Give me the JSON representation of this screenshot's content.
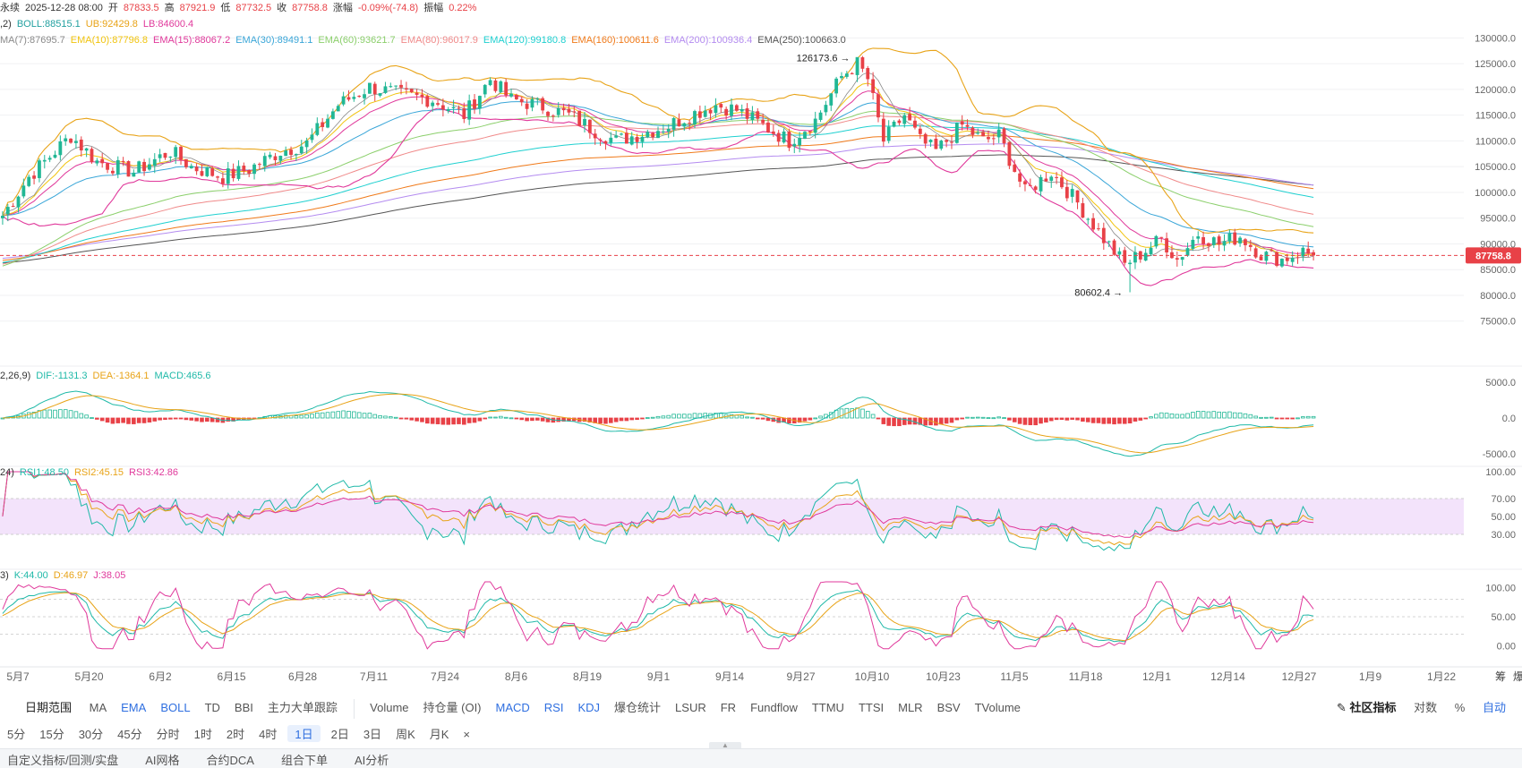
{
  "header": {
    "row1": [
      {
        "text": "永续",
        "color": "#333333"
      },
      {
        "text": "2025-12-28 08:00",
        "color": "#333333"
      },
      {
        "text": "开",
        "color": "#333333"
      },
      {
        "text": "87833.5",
        "color": "#e84147"
      },
      {
        "text": "高",
        "color": "#333333"
      },
      {
        "text": "87921.9",
        "color": "#e84147"
      },
      {
        "text": "低",
        "color": "#333333"
      },
      {
        "text": "87732.5",
        "color": "#e84147"
      },
      {
        "text": "收",
        "color": "#333333"
      },
      {
        "text": "87758.8",
        "color": "#e84147"
      },
      {
        "text": "涨幅",
        "color": "#333333"
      },
      {
        "text": "-0.09%(-74.8)",
        "color": "#e84147"
      },
      {
        "text": "振幅",
        "color": "#333333"
      },
      {
        "text": "0.22%",
        "color": "#e84147"
      }
    ],
    "row2": [
      {
        "text": ",2)",
        "color": "#333333"
      },
      {
        "text": "BOLL:88515.1",
        "color": "#22a0a0"
      },
      {
        "text": "UB:92429.8",
        "color": "#e8a317"
      },
      {
        "text": "LB:84600.4",
        "color": "#e0399b"
      }
    ],
    "row3": [
      {
        "text": "MA(7):87695.7",
        "color": "#8a8a8a"
      },
      {
        "text": "EMA(10):87796.8",
        "color": "#f1c40f"
      },
      {
        "text": "EMA(15):88067.2",
        "color": "#e0399b"
      },
      {
        "text": "EMA(30):89491.1",
        "color": "#3aa6d8"
      },
      {
        "text": "EMA(60):93621.7",
        "color": "#8bcf6b"
      },
      {
        "text": "EMA(80):96017.9",
        "color": "#f08a8a"
      },
      {
        "text": "EMA(120):99180.8",
        "color": "#1fd0d0"
      },
      {
        "text": "EMA(160):100611.6",
        "color": "#f07a1a"
      },
      {
        "text": "EMA(200):100936.4",
        "color": "#b48cf0"
      },
      {
        "text": "EMA(250):100663.0",
        "color": "#555555"
      }
    ],
    "macd_legend": [
      {
        "text": "2,26,9)",
        "color": "#333333"
      },
      {
        "text": "DIF:-1131.3",
        "color": "#1fb9a8"
      },
      {
        "text": "DEA:-1364.1",
        "color": "#e8a317"
      },
      {
        "text": "MACD:465.6",
        "color": "#1fb9a8"
      }
    ],
    "rsi_legend": [
      {
        "text": "24)",
        "color": "#333333"
      },
      {
        "text": "RSI1:48.50",
        "color": "#1fb9a8"
      },
      {
        "text": "RSI2:45.15",
        "color": "#e8a317"
      },
      {
        "text": "RSI3:42.86",
        "color": "#e0399b"
      }
    ],
    "kdj_legend": [
      {
        "text": "3)",
        "color": "#333333"
      },
      {
        "text": "K:44.00",
        "color": "#1fb9a8"
      },
      {
        "text": "D:46.97",
        "color": "#e8a317"
      },
      {
        "text": "J:38.05",
        "color": "#e0399b"
      }
    ]
  },
  "colors": {
    "up": "#21b795",
    "down": "#e84147",
    "grid": "#f0f1f3",
    "axis_text": "#666666",
    "boll_ub": "#e8a317",
    "boll_lb": "#e0399b",
    "boll_mid": "#22a0a0",
    "rsi_band": "#f3e3fb"
  },
  "chart_data": [
    {
      "type": "candlestick",
      "title": "",
      "yaxis_ticks": [
        "130000.0",
        "125000.0",
        "120000.0",
        "115000.0",
        "110000.0",
        "105000.0",
        "100000.0",
        "95000.0",
        "90000.0",
        "85000.0",
        "80000.0",
        "75000.0"
      ],
      "ylim": [
        72000,
        132500
      ],
      "x_ticks": [
        "5月7",
        "5月20",
        "6月2",
        "6月15",
        "6月28",
        "7月11",
        "7月24",
        "8月6",
        "8月19",
        "9月1",
        "9月14",
        "9月27",
        "10月10",
        "10月23",
        "11月5",
        "11月18",
        "12月1",
        "12月14",
        "12月27",
        "1月9",
        "1月22"
      ],
      "last_price": "87758.8",
      "annotations": [
        {
          "text": "126173.6",
          "value": 126173.6,
          "date": "10月6"
        },
        {
          "text": "80602.4",
          "value": 80602.4,
          "date": "11月21"
        }
      ],
      "price_path": [
        [
          0,
          95500
        ],
        [
          5,
          103000
        ],
        [
          13,
          111000
        ],
        [
          18,
          106000
        ],
        [
          25,
          104000
        ],
        [
          32,
          108000
        ],
        [
          36,
          105000
        ],
        [
          42,
          103000
        ],
        [
          47,
          104500
        ],
        [
          53,
          108000
        ],
        [
          58,
          109500
        ],
        [
          64,
          117000
        ],
        [
          70,
          120500
        ],
        [
          76,
          119000
        ],
        [
          82,
          118000
        ],
        [
          88,
          115000
        ],
        [
          93,
          122000
        ],
        [
          97,
          118000
        ],
        [
          102,
          117000
        ],
        [
          108,
          115000
        ],
        [
          113,
          112000
        ],
        [
          117,
          110000
        ],
        [
          122,
          111500
        ],
        [
          127,
          113000
        ],
        [
          131,
          115000
        ],
        [
          136,
          117000
        ],
        [
          140,
          116000
        ],
        [
          145,
          113000
        ],
        [
          150,
          110000
        ],
        [
          155,
          114000
        ],
        [
          160,
          122500
        ],
        [
          163,
          125000
        ],
        [
          165,
          122000
        ],
        [
          168,
          110000
        ],
        [
          172,
          115000
        ],
        [
          175,
          110000
        ],
        [
          178,
          108000
        ],
        [
          183,
          113000
        ],
        [
          187,
          110000
        ],
        [
          190,
          111000
        ],
        [
          195,
          100000
        ],
        [
          200,
          104000
        ],
        [
          205,
          98000
        ],
        [
          210,
          91000
        ],
        [
          214,
          86000
        ],
        [
          217,
          88000
        ],
        [
          221,
          91000
        ],
        [
          224,
          87000
        ],
        [
          228,
          92000
        ],
        [
          232,
          90000
        ],
        [
          236,
          91500
        ],
        [
          240,
          88000
        ],
        [
          244,
          87000
        ],
        [
          248,
          88500
        ],
        [
          250,
          87760
        ]
      ]
    },
    {
      "type": "bar",
      "title": "MACD",
      "yaxis_ticks": [
        "5000.0",
        "0.0",
        "-5000.0"
      ],
      "ylim": [
        -6000,
        6500
      ],
      "DIF": -1131.3,
      "DEA": -1364.1,
      "MACD": 465.6
    },
    {
      "type": "line",
      "title": "RSI",
      "yaxis_ticks": [
        "100.00",
        "70.00",
        "50.00",
        "30.00"
      ],
      "ylim": [
        0,
        100
      ],
      "band": [
        30,
        70
      ],
      "RSI1": 48.5,
      "RSI2": 45.15,
      "RSI3": 42.86
    },
    {
      "type": "line",
      "title": "KDJ",
      "yaxis_ticks": [
        "100.00",
        "50.00",
        "0.00"
      ],
      "ylim": [
        0,
        100
      ],
      "K": 44.0,
      "D": 46.97,
      "J": 38.05
    }
  ],
  "toolbar": {
    "date_range": "日期范围",
    "chips": [
      "MA",
      "EMA",
      "BOLL",
      "TD",
      "BBI",
      "主力大单跟踪"
    ],
    "chips_blue": [
      "EMA",
      "BOLL"
    ],
    "sub_indicators": [
      "Volume",
      "持仓量 (OI)",
      "MACD",
      "RSI",
      "KDJ",
      "爆仓统计",
      "LSUR",
      "FR",
      "Fundflow",
      "TTMU",
      "TTSI",
      "MLR",
      "BSV",
      "TVolume"
    ],
    "sub_blue": [
      "MACD",
      "RSI",
      "KDJ"
    ],
    "community": "社区指标",
    "log": "对数",
    "percent": "%",
    "auto": "自动"
  },
  "timeframes": {
    "items": [
      "5分",
      "15分",
      "30分",
      "45分",
      "分时",
      "1时",
      "2时",
      "4时",
      "1日",
      "2日",
      "3日",
      "周K",
      "月K"
    ],
    "active": "1日",
    "close": "×"
  },
  "bottom": {
    "items": [
      "自定义指标/回测/实盘",
      "AI网格",
      "合约DCA",
      "组合下单",
      "AI分析"
    ]
  },
  "right_edge": [
    "筹",
    "爆"
  ]
}
